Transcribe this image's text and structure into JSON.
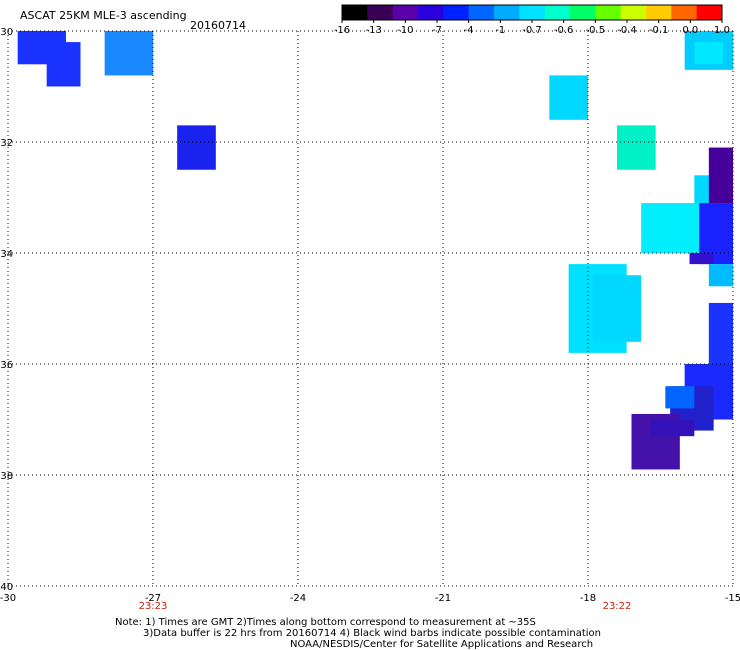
{
  "header": {
    "title": "ASCAT 25KM MLE-3 ascending",
    "date": "20160714"
  },
  "colorbar": {
    "labels": [
      "-16",
      "-13",
      "-10",
      "-7",
      "-4",
      "-1",
      "-0.7",
      "-0.6",
      "-0.5",
      "-0.4",
      "-0.1",
      "0.0",
      "1.0"
    ],
    "colors": [
      "#000000",
      "#3a0055",
      "#5a00aa",
      "#2a00dd",
      "#0022ff",
      "#0066ff",
      "#00aaff",
      "#00e0ff",
      "#00ffcc",
      "#00ff66",
      "#66ff00",
      "#ccff00",
      "#ffcc00",
      "#ff6600",
      "#ff0000"
    ]
  },
  "map": {
    "lon_range": [
      -30,
      -15
    ],
    "lat_range": [
      -40,
      -30
    ],
    "lon_ticks": [
      "-30",
      "-27",
      "-24",
      "-21",
      "-18",
      "-15"
    ],
    "lat_ticks": [
      "-30",
      "-32",
      "-34",
      "-36",
      "-38",
      "-40"
    ],
    "pass_times": [
      {
        "lon": -27,
        "label": "23:23"
      },
      {
        "lon": -17.4,
        "label": "23:22"
      }
    ],
    "cells": [
      {
        "lon": [
          -29.8,
          -28.8
        ],
        "lat": [
          -30.0,
          -30.6
        ],
        "color": "#1a33ff"
      },
      {
        "lon": [
          -29.2,
          -28.5
        ],
        "lat": [
          -30.2,
          -31.0
        ],
        "color": "#1a33ff"
      },
      {
        "lon": [
          -28.0,
          -27.0
        ],
        "lat": [
          -30.0,
          -30.8
        ],
        "color": "#1a88ff"
      },
      {
        "lon": [
          -26.5,
          -25.7
        ],
        "lat": [
          -31.7,
          -32.5
        ],
        "color": "#1a22ee"
      },
      {
        "lon": [
          -18.8,
          -18.0
        ],
        "lat": [
          -30.8,
          -31.6
        ],
        "color": "#00d8ff"
      },
      {
        "lon": [
          -17.4,
          -16.6
        ],
        "lat": [
          -31.7,
          -32.5
        ],
        "color": "#00f0c8"
      },
      {
        "lon": [
          -16.0,
          -15.0
        ],
        "lat": [
          -30.0,
          -30.7
        ],
        "color": "#00ccff"
      },
      {
        "lon": [
          -15.8,
          -15.2
        ],
        "lat": [
          -30.2,
          -30.6
        ],
        "color": "#00e8ff"
      },
      {
        "lon": [
          -15.8,
          -15.0
        ],
        "lat": [
          -32.6,
          -33.2
        ],
        "color": "#00d8ff"
      },
      {
        "lon": [
          -16.9,
          -15.2
        ],
        "lat": [
          -33.1,
          -34.0
        ],
        "color": "#00eeff"
      },
      {
        "lon": [
          -15.5,
          -15.0
        ],
        "lat": [
          -32.1,
          -33.1
        ],
        "color": "#440099"
      },
      {
        "lon": [
          -15.7,
          -15.0
        ],
        "lat": [
          -33.1,
          -34.2
        ],
        "color": "#1a22ff"
      },
      {
        "lon": [
          -15.9,
          -15.4
        ],
        "lat": [
          -34.0,
          -34.2
        ],
        "color": "#3311cc"
      },
      {
        "lon": [
          -15.5,
          -15.0
        ],
        "lat": [
          -34.2,
          -34.6
        ],
        "color": "#00bbff"
      },
      {
        "lon": [
          -18.4,
          -17.2
        ],
        "lat": [
          -34.2,
          -35.8
        ],
        "color": "#00e0ff"
      },
      {
        "lon": [
          -17.9,
          -16.9
        ],
        "lat": [
          -34.4,
          -35.6
        ],
        "color": "#00d8ff"
      },
      {
        "lon": [
          -15.5,
          -15.0
        ],
        "lat": [
          -34.9,
          -36.0
        ],
        "color": "#1a33ff"
      },
      {
        "lon": [
          -16.0,
          -15.0
        ],
        "lat": [
          -36.0,
          -37.0
        ],
        "color": "#1a2aff"
      },
      {
        "lon": [
          -16.3,
          -15.4
        ],
        "lat": [
          -36.4,
          -37.2
        ],
        "color": "#2222cc"
      },
      {
        "lon": [
          -16.4,
          -15.8
        ],
        "lat": [
          -36.4,
          -36.8
        ],
        "color": "#0066ff"
      },
      {
        "lon": [
          -17.1,
          -16.1
        ],
        "lat": [
          -36.9,
          -37.9
        ],
        "color": "#4411aa"
      },
      {
        "lon": [
          -16.7,
          -15.8
        ],
        "lat": [
          -37.0,
          -37.3
        ],
        "color": "#3311bb"
      }
    ]
  },
  "notes": {
    "line1": "Note: 1) Times are GMT  2)Times along bottom correspond to measurement at ~35S",
    "line2": "3)Data buffer is 22 hrs from 20160714  4) Black wind barbs indicate possible contamination",
    "line3": "NOAA/NESDIS/Center for Satellite Applications and Research"
  }
}
